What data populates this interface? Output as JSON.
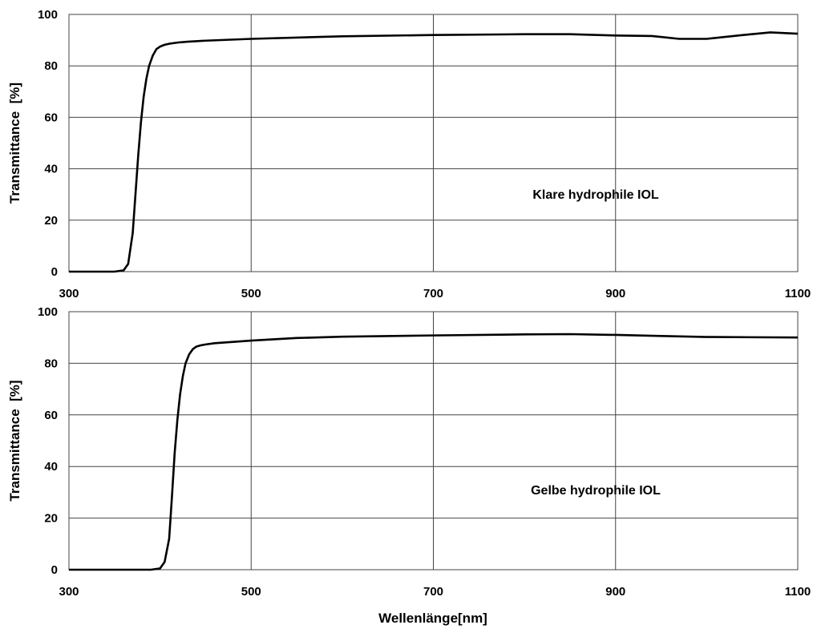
{
  "chart_data": [
    {
      "type": "line",
      "title": "",
      "xlabel": "",
      "ylabel": "Transmittance  [%]",
      "xlim": [
        300,
        1100
      ],
      "ylim": [
        0,
        100
      ],
      "x_ticks": [
        300,
        500,
        700,
        900,
        1100
      ],
      "y_ticks": [
        0,
        20,
        40,
        60,
        80,
        100
      ],
      "grid": true,
      "annotation": "Klare hydrophile IOL",
      "series": [
        {
          "x": [
            300,
            350,
            360,
            365,
            370,
            373,
            376,
            379,
            382,
            385,
            388,
            392,
            396,
            400,
            405,
            410,
            420,
            430,
            450,
            500,
            600,
            700,
            800,
            850,
            900,
            940,
            970,
            1000,
            1040,
            1070,
            1100
          ],
          "y": [
            0,
            0,
            0.5,
            3,
            15,
            30,
            45,
            58,
            68,
            75,
            80,
            84,
            86.5,
            87.5,
            88.2,
            88.6,
            89.1,
            89.4,
            89.8,
            90.5,
            91.5,
            92,
            92.3,
            92.3,
            91.8,
            91.6,
            90.5,
            90.5,
            92,
            93,
            92.5
          ]
        }
      ]
    },
    {
      "type": "line",
      "title": "",
      "xlabel": "Wellenlänge[nm]",
      "ylabel": "Transmittance  [%]",
      "xlim": [
        300,
        1100
      ],
      "ylim": [
        0,
        100
      ],
      "x_ticks": [
        300,
        500,
        700,
        900,
        1100
      ],
      "y_ticks": [
        0,
        20,
        40,
        60,
        80,
        100
      ],
      "grid": true,
      "annotation": "Gelbe hydrophile IOL",
      "series": [
        {
          "x": [
            300,
            390,
            400,
            405,
            410,
            413,
            416,
            419,
            422,
            425,
            428,
            432,
            436,
            440,
            445,
            450,
            460,
            480,
            500,
            550,
            600,
            700,
            800,
            850,
            900,
            950,
            1000,
            1050,
            1100
          ],
          "y": [
            0,
            0,
            0.5,
            3,
            12,
            28,
            45,
            58,
            68,
            75,
            80,
            83.5,
            85.5,
            86.5,
            87,
            87.3,
            87.8,
            88.3,
            88.8,
            89.8,
            90.3,
            90.8,
            91.2,
            91.3,
            91,
            90.6,
            90.2,
            90.1,
            90
          ]
        }
      ]
    }
  ]
}
